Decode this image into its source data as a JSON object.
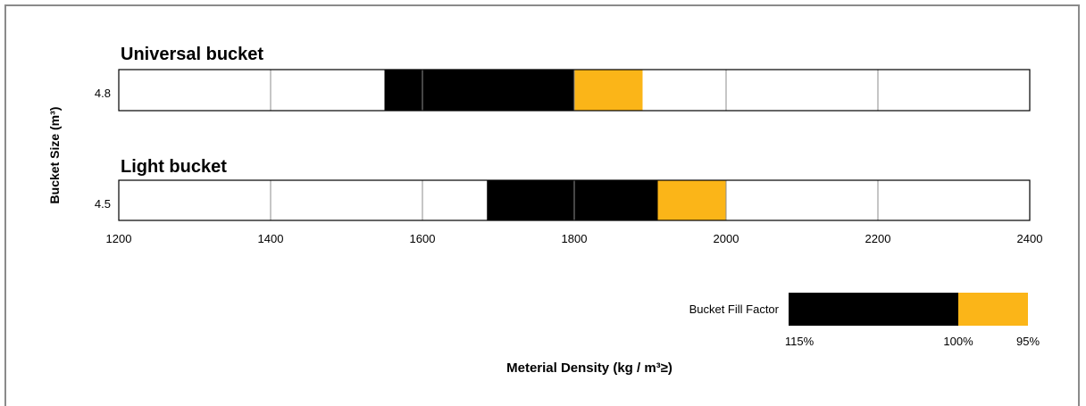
{
  "chart_data": {
    "type": "bar",
    "orientation": "horizontal",
    "ylabel": "Bucket Size (m³)",
    "xlabel": "Meterial Density (kg / m³≥)",
    "xlim": [
      1200,
      2400
    ],
    "xticks": [
      "1200",
      "1400",
      "1600",
      "1800",
      "2000",
      "2200",
      "2400"
    ],
    "grid": true,
    "panels": [
      {
        "title": "Universal bucket",
        "size": "4.8",
        "segments": [
          {
            "from": 1550,
            "to": 1800,
            "color": "#000000"
          },
          {
            "from": 1800,
            "to": 1890,
            "color": "#fbb518"
          }
        ]
      },
      {
        "title": "Light bucket",
        "size": "4.5",
        "segments": [
          {
            "from": 1685,
            "to": 1910,
            "color": "#000000"
          },
          {
            "from": 1910,
            "to": 2000,
            "color": "#fbb518"
          }
        ]
      }
    ],
    "legend": {
      "label": "Bucket Fill Factor",
      "position": "bottom-right",
      "ticks": [
        "115%",
        "100%",
        "95%"
      ],
      "colors": [
        "#000000",
        "#fbb518"
      ]
    }
  }
}
